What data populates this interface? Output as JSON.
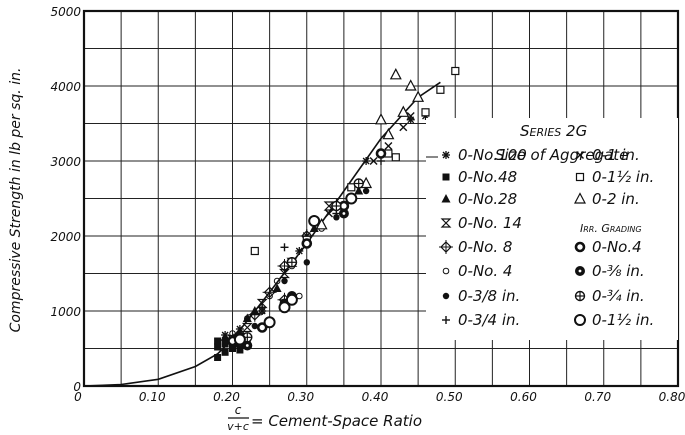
{
  "chart_data": {
    "type": "scatter",
    "title": "",
    "xlabel": "= Cement-Space Ratio",
    "xlabel_fraction": {
      "numerator": "c",
      "denominator": "v+c"
    },
    "ylabel": "Compressive Strength in lb per sq. in.",
    "xlim": [
      0,
      0.8
    ],
    "ylim": [
      0,
      5000
    ],
    "x_ticks": [
      0,
      0.1,
      0.2,
      0.3,
      0.4,
      0.5,
      0.6,
      0.7,
      0.8
    ],
    "x_tick_labels": [
      "0",
      "0.10",
      "0.20",
      "0.30",
      "0.40",
      "0.50",
      "0.60",
      "0.70",
      "0.80"
    ],
    "y_ticks": [
      0,
      1000,
      2000,
      3000,
      4000,
      5000
    ],
    "y_tick_labels": [
      "0",
      "1000",
      "2000",
      "3000",
      "4000",
      "5000"
    ],
    "grid": true,
    "legend_position": "right",
    "legend": {
      "series_heading": "Series 2G",
      "title": "Size of Aggregate",
      "irr_heading": "Irr. Grading"
    },
    "fit_curve": {
      "x": [
        0.0,
        0.05,
        0.1,
        0.15,
        0.18,
        0.2,
        0.25,
        0.3,
        0.35,
        0.4,
        0.45,
        0.48
      ],
      "y": [
        0,
        20,
        90,
        260,
        430,
        620,
        1250,
        1900,
        2600,
        3300,
        3850,
        4050
      ]
    },
    "series": [
      {
        "name": "0-No.100",
        "marker": "asterisk",
        "points": [
          [
            0.19,
            680
          ],
          [
            0.21,
            760
          ],
          [
            0.24,
            1000
          ],
          [
            0.29,
            1800
          ],
          [
            0.38,
            3000
          ],
          [
            0.46,
            3600
          ],
          [
            0.44,
            3550
          ]
        ]
      },
      {
        "name": "0-No.48",
        "marker": "square-filled",
        "points": [
          [
            0.18,
            380
          ],
          [
            0.18,
            520
          ],
          [
            0.19,
            450
          ],
          [
            0.18,
            600
          ],
          [
            0.19,
            560
          ],
          [
            0.2,
            500
          ],
          [
            0.21,
            480
          ],
          [
            0.22,
            600
          ]
        ]
      },
      {
        "name": "0-No.28",
        "marker": "triangle-filled",
        "points": [
          [
            0.19,
            650
          ],
          [
            0.21,
            700
          ],
          [
            0.22,
            900
          ],
          [
            0.23,
            1000
          ],
          [
            0.26,
            1300
          ],
          [
            0.31,
            2100
          ],
          [
            0.37,
            2600
          ]
        ]
      },
      {
        "name": "0-No. 14",
        "marker": "hourglass",
        "points": [
          [
            0.2,
            620
          ],
          [
            0.22,
            780
          ],
          [
            0.24,
            1100
          ],
          [
            0.27,
            1500
          ],
          [
            0.28,
            1650
          ],
          [
            0.33,
            2400
          ]
        ]
      },
      {
        "name": "0-No. 8",
        "marker": "diamond-cross",
        "points": [
          [
            0.21,
            690
          ],
          [
            0.23,
            950
          ],
          [
            0.25,
            1250
          ],
          [
            0.27,
            1600
          ],
          [
            0.3,
            2000
          ],
          [
            0.34,
            2400
          ],
          [
            0.27,
            1150
          ]
        ]
      },
      {
        "name": "0-No. 4",
        "marker": "circle-small",
        "points": [
          [
            0.2,
            700
          ],
          [
            0.22,
            900
          ],
          [
            0.24,
            1000
          ],
          [
            0.26,
            1400
          ],
          [
            0.28,
            1600
          ],
          [
            0.3,
            1900
          ],
          [
            0.32,
            2100
          ],
          [
            0.29,
            1200
          ],
          [
            0.25,
            1200
          ]
        ]
      },
      {
        "name": "0-3/8 in.",
        "marker": "dot",
        "points": [
          [
            0.2,
            580
          ],
          [
            0.21,
            620
          ],
          [
            0.23,
            800
          ],
          [
            0.27,
            1400
          ],
          [
            0.3,
            1650
          ],
          [
            0.34,
            2250
          ],
          [
            0.36,
            2500
          ],
          [
            0.38,
            2600
          ]
        ]
      },
      {
        "name": "0-3/4 in.",
        "marker": "plus",
        "points": [
          [
            0.21,
            700
          ],
          [
            0.24,
            1050
          ],
          [
            0.27,
            1850
          ],
          [
            0.3,
            2000
          ],
          [
            0.34,
            2300
          ],
          [
            0.38,
            2650
          ],
          [
            0.4,
            3000
          ]
        ]
      },
      {
        "name": "0-1 in.",
        "marker": "x",
        "points": [
          [
            0.3,
            2000
          ],
          [
            0.33,
            2300
          ],
          [
            0.37,
            2700
          ],
          [
            0.39,
            3000
          ],
          [
            0.41,
            3200
          ],
          [
            0.43,
            3450
          ],
          [
            0.44,
            3600
          ],
          [
            0.46,
            3650
          ]
        ]
      },
      {
        "name": "0-1½ in.",
        "marker": "square-open",
        "points": [
          [
            0.23,
            1800
          ],
          [
            0.3,
            1950
          ],
          [
            0.36,
            2650
          ],
          [
            0.41,
            3100
          ],
          [
            0.42,
            3050
          ],
          [
            0.46,
            3650
          ],
          [
            0.48,
            3950
          ],
          [
            0.5,
            4200
          ]
        ]
      },
      {
        "name": "0-2 in.",
        "marker": "triangle-open",
        "points": [
          [
            0.32,
            2150
          ],
          [
            0.38,
            2700
          ],
          [
            0.4,
            3550
          ],
          [
            0.41,
            3350
          ],
          [
            0.43,
            3650
          ],
          [
            0.45,
            3850
          ],
          [
            0.44,
            4000
          ],
          [
            0.42,
            4150
          ]
        ]
      },
      {
        "name": "0-No.4",
        "group": "Irr. Grading",
        "marker": "circle-thick",
        "points": [
          [
            0.2,
            600
          ],
          [
            0.24,
            780
          ],
          [
            0.25,
            850
          ],
          [
            0.28,
            1650
          ],
          [
            0.3,
            1900
          ],
          [
            0.35,
            2400
          ],
          [
            0.4,
            3100
          ]
        ]
      },
      {
        "name": "0-⅜ in.",
        "group": "Irr. Grading",
        "marker": "circle-filled-large",
        "points": [
          [
            0.21,
            560
          ],
          [
            0.22,
            540
          ],
          [
            0.27,
            1100
          ],
          [
            0.28,
            1200
          ],
          [
            0.35,
            2300
          ]
        ]
      },
      {
        "name": "0-¾ in.",
        "group": "Irr. Grading",
        "marker": "circle-cross",
        "points": [
          [
            0.22,
            650
          ],
          [
            0.28,
            1650
          ],
          [
            0.34,
            2400
          ],
          [
            0.37,
            2700
          ]
        ]
      },
      {
        "name": "0-1½ in.",
        "group": "Irr. Grading",
        "marker": "circle-open-large",
        "points": [
          [
            0.21,
            620
          ],
          [
            0.25,
            850
          ],
          [
            0.27,
            1050
          ],
          [
            0.28,
            1150
          ],
          [
            0.31,
            2200
          ],
          [
            0.36,
            2500
          ]
        ]
      }
    ]
  }
}
